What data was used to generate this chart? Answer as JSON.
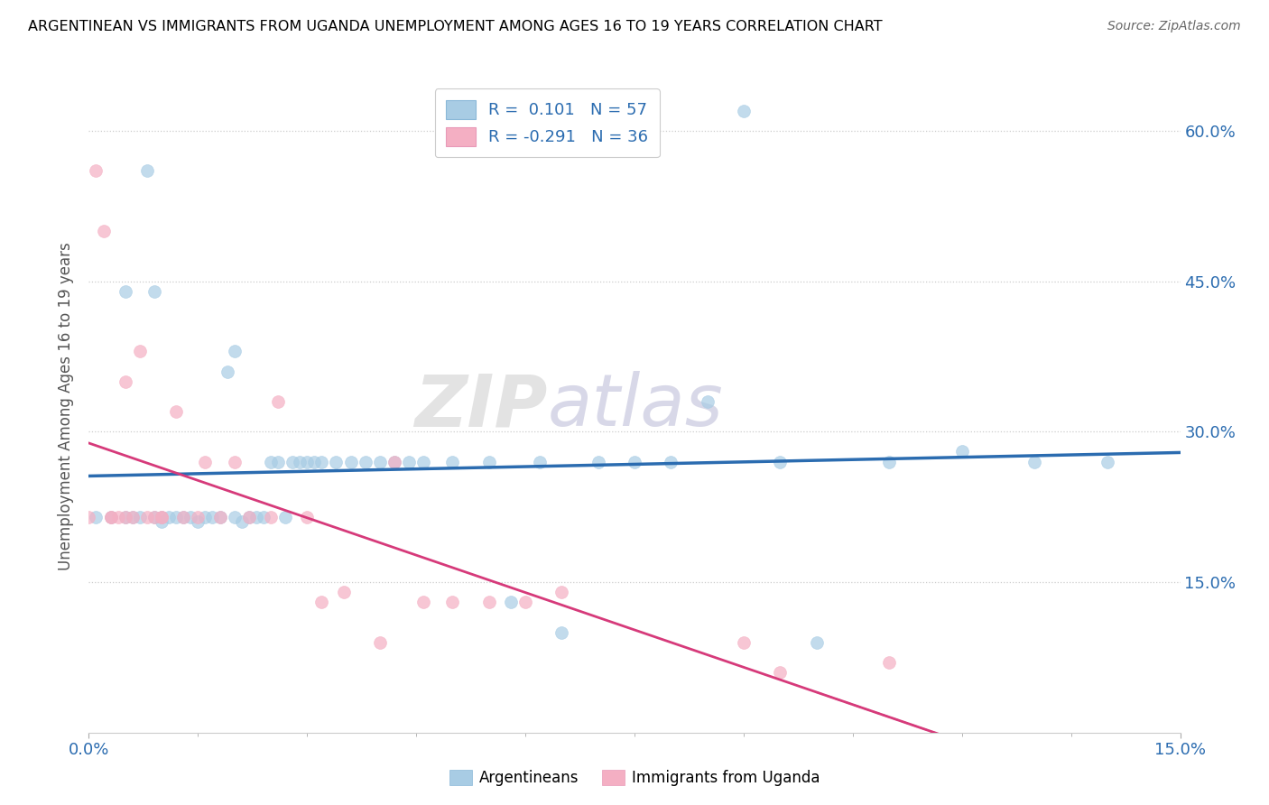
{
  "title": "ARGENTINEAN VS IMMIGRANTS FROM UGANDA UNEMPLOYMENT AMONG AGES 16 TO 19 YEARS CORRELATION CHART",
  "source": "Source: ZipAtlas.com",
  "ylabel": "Unemployment Among Ages 16 to 19 years",
  "xlim": [
    0.0,
    0.15
  ],
  "ylim": [
    0.0,
    0.65
  ],
  "xticks": [
    0.0,
    0.15
  ],
  "xtick_labels": [
    "0.0%",
    "15.0%"
  ],
  "ytick_positions": [
    0.15,
    0.3,
    0.45,
    0.6
  ],
  "ytick_labels": [
    "15.0%",
    "30.0%",
    "45.0%",
    "60.0%"
  ],
  "r_blue": 0.101,
  "n_blue": 57,
  "r_pink": -0.291,
  "n_pink": 36,
  "blue_color": "#a8cce4",
  "pink_color": "#f4afc3",
  "blue_line_color": "#2b6cb0",
  "pink_line_color": "#d63a7a",
  "watermark_zip": "ZIP",
  "watermark_atlas": "atlas",
  "blue_scatter_x": [
    0.001,
    0.003,
    0.005,
    0.005,
    0.006,
    0.007,
    0.008,
    0.009,
    0.009,
    0.01,
    0.01,
    0.011,
    0.012,
    0.013,
    0.014,
    0.015,
    0.016,
    0.017,
    0.018,
    0.019,
    0.02,
    0.02,
    0.021,
    0.022,
    0.023,
    0.024,
    0.025,
    0.026,
    0.027,
    0.028,
    0.029,
    0.03,
    0.031,
    0.032,
    0.034,
    0.036,
    0.038,
    0.04,
    0.042,
    0.044,
    0.046,
    0.05,
    0.055,
    0.058,
    0.062,
    0.065,
    0.07,
    0.075,
    0.08,
    0.085,
    0.09,
    0.095,
    0.1,
    0.11,
    0.12,
    0.13,
    0.14
  ],
  "blue_scatter_y": [
    0.215,
    0.215,
    0.44,
    0.215,
    0.215,
    0.215,
    0.56,
    0.215,
    0.44,
    0.21,
    0.215,
    0.215,
    0.215,
    0.215,
    0.215,
    0.21,
    0.215,
    0.215,
    0.215,
    0.36,
    0.38,
    0.215,
    0.21,
    0.215,
    0.215,
    0.215,
    0.27,
    0.27,
    0.215,
    0.27,
    0.27,
    0.27,
    0.27,
    0.27,
    0.27,
    0.27,
    0.27,
    0.27,
    0.27,
    0.27,
    0.27,
    0.27,
    0.27,
    0.13,
    0.27,
    0.1,
    0.27,
    0.27,
    0.27,
    0.33,
    0.62,
    0.27,
    0.09,
    0.27,
    0.28,
    0.27,
    0.27
  ],
  "pink_scatter_x": [
    0.0,
    0.001,
    0.002,
    0.003,
    0.003,
    0.004,
    0.005,
    0.005,
    0.006,
    0.007,
    0.008,
    0.009,
    0.01,
    0.01,
    0.012,
    0.013,
    0.015,
    0.016,
    0.018,
    0.02,
    0.022,
    0.025,
    0.026,
    0.03,
    0.032,
    0.035,
    0.04,
    0.042,
    0.046,
    0.05,
    0.055,
    0.06,
    0.065,
    0.09,
    0.095,
    0.11
  ],
  "pink_scatter_y": [
    0.215,
    0.56,
    0.5,
    0.215,
    0.215,
    0.215,
    0.215,
    0.35,
    0.215,
    0.38,
    0.215,
    0.215,
    0.215,
    0.215,
    0.32,
    0.215,
    0.215,
    0.27,
    0.215,
    0.27,
    0.215,
    0.215,
    0.33,
    0.215,
    0.13,
    0.14,
    0.09,
    0.27,
    0.13,
    0.13,
    0.13,
    0.13,
    0.14,
    0.09,
    0.06,
    0.07
  ]
}
